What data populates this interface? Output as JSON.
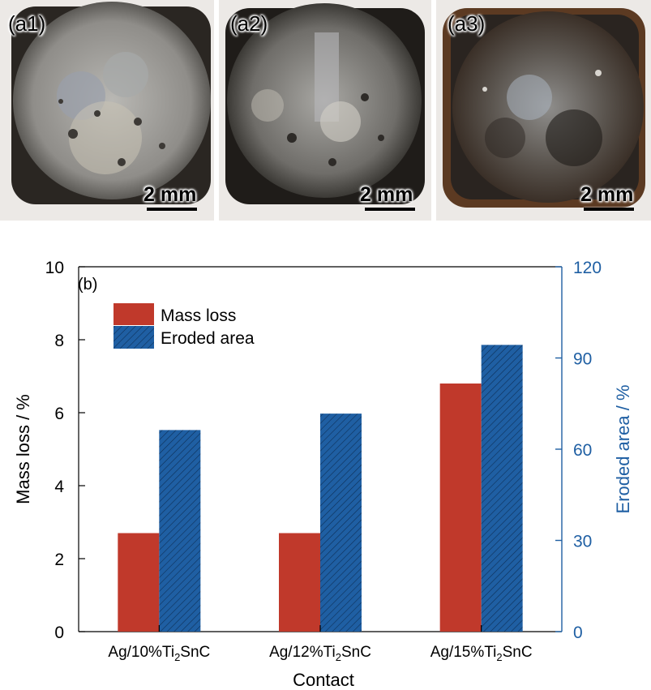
{
  "photos": [
    {
      "label": "(a1)",
      "scale_label": "2 mm"
    },
    {
      "label": "(a2)",
      "scale_label": "2 mm"
    },
    {
      "label": "(a3)",
      "scale_label": "2 mm"
    }
  ],
  "colors": {
    "mass_loss": "#c0392b",
    "eroded_area": "#1f5fa3",
    "right_axis": "#1f5fa3"
  },
  "chart_data": {
    "type": "bar",
    "panel_label": "(b)",
    "categories": [
      {
        "base": "Ag/10%Ti",
        "sub": "2",
        "tail": "SnC"
      },
      {
        "base": "Ag/12%Ti",
        "sub": "2",
        "tail": "SnC"
      },
      {
        "base": "Ag/15%Ti",
        "sub": "2",
        "tail": "SnC"
      }
    ],
    "series": [
      {
        "name": "Mass loss",
        "axis": "left",
        "values": [
          2.7,
          2.7,
          6.8
        ]
      },
      {
        "name": "Eroded area",
        "axis": "right",
        "values": [
          66.3,
          71.7,
          94.3
        ]
      }
    ],
    "xlabel": "Contact",
    "ylabel_left": "Mass loss / %",
    "ylabel_right": "Eroded area / %",
    "ylim_left": [
      0,
      10
    ],
    "ylim_right": [
      0,
      120
    ],
    "yticks_left": [
      0,
      2,
      4,
      6,
      8,
      10
    ],
    "yticks_right": [
      0,
      30,
      60,
      90,
      120
    ],
    "legend_position": "top-left",
    "grid": false
  }
}
